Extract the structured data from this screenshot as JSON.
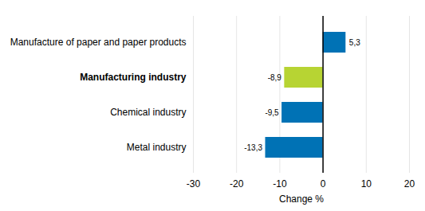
{
  "chart_data": {
    "type": "bar",
    "orientation": "horizontal",
    "categories": [
      "Manufacture of paper and paper products",
      "Manufacturing industry",
      "Chemical industry",
      "Metal industry"
    ],
    "values": [
      5.3,
      -8.9,
      -9.5,
      -13.3
    ],
    "value_labels": [
      "5,3",
      "-8,9",
      "-9,5",
      "-13,3"
    ],
    "colors": [
      "#0072b5",
      "#b7d433",
      "#0072b5",
      "#0072b5"
    ],
    "x_label": "Change %",
    "xlim": [
      -30,
      20
    ],
    "xticks": [
      -30,
      -20,
      -10,
      0,
      10,
      20
    ],
    "grid": true,
    "data_labels": true
  }
}
